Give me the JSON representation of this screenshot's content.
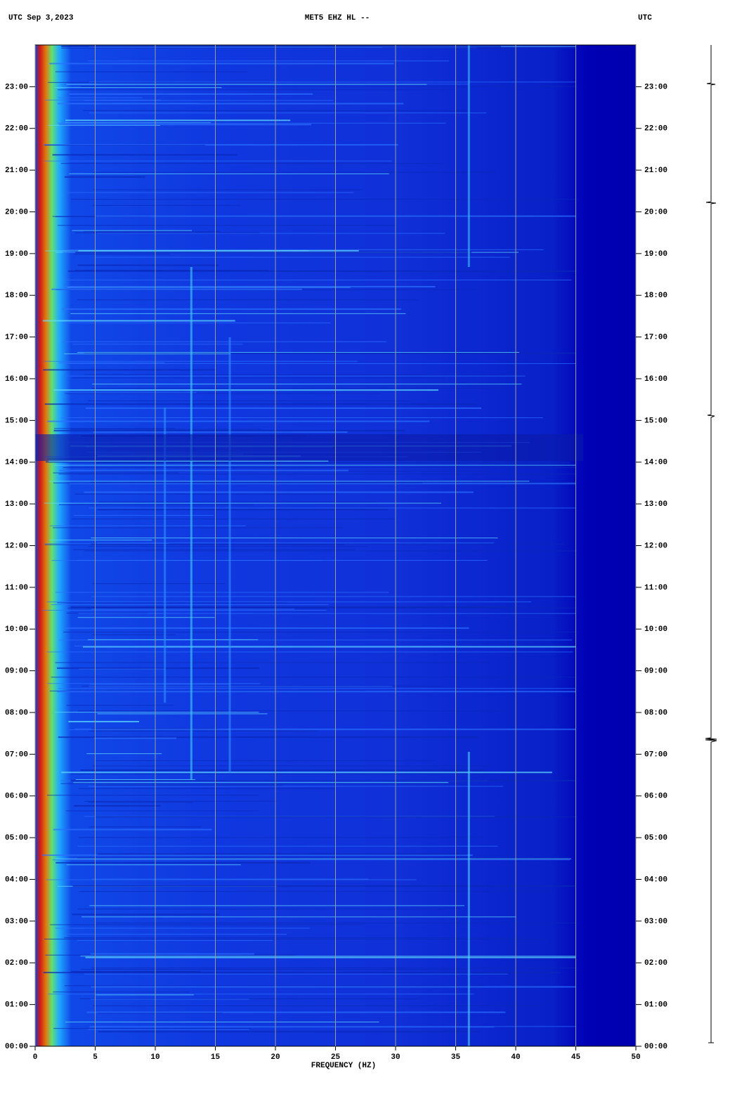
{
  "chart_data": {
    "type": "spectrogram",
    "title": "MET5 EHZ HL --",
    "date_label": "UTC  Sep 3,2023",
    "right_label": "UTC",
    "x_label": "FREQUENCY (HZ)",
    "xlim": [
      0,
      50
    ],
    "xticks": [
      0,
      5,
      10,
      15,
      20,
      25,
      30,
      35,
      40,
      45,
      50
    ],
    "ylim": [
      0,
      24
    ],
    "yticks": [
      {
        "value": 0,
        "label": "00:00"
      },
      {
        "value": 1,
        "label": "01:00"
      },
      {
        "value": 2,
        "label": "02:00"
      },
      {
        "value": 3,
        "label": "03:00"
      },
      {
        "value": 4,
        "label": "04:00"
      },
      {
        "value": 5,
        "label": "05:00"
      },
      {
        "value": 6,
        "label": "06:00"
      },
      {
        "value": 7,
        "label": "07:00"
      },
      {
        "value": 8,
        "label": "08:00"
      },
      {
        "value": 9,
        "label": "09:00"
      },
      {
        "value": 10,
        "label": "10:00"
      },
      {
        "value": 11,
        "label": "11:00"
      },
      {
        "value": 12,
        "label": "12:00"
      },
      {
        "value": 13,
        "label": "13:00"
      },
      {
        "value": 14,
        "label": "14:00"
      },
      {
        "value": 15,
        "label": "15:00"
      },
      {
        "value": 16,
        "label": "16:00"
      },
      {
        "value": 17,
        "label": "17:00"
      },
      {
        "value": 18,
        "label": "18:00"
      },
      {
        "value": 19,
        "label": "19:00"
      },
      {
        "value": 20,
        "label": "20:00"
      },
      {
        "value": 21,
        "label": "21:00"
      },
      {
        "value": 22,
        "label": "22:00"
      },
      {
        "value": 23,
        "label": "23:00"
      }
    ],
    "grid": true
  }
}
